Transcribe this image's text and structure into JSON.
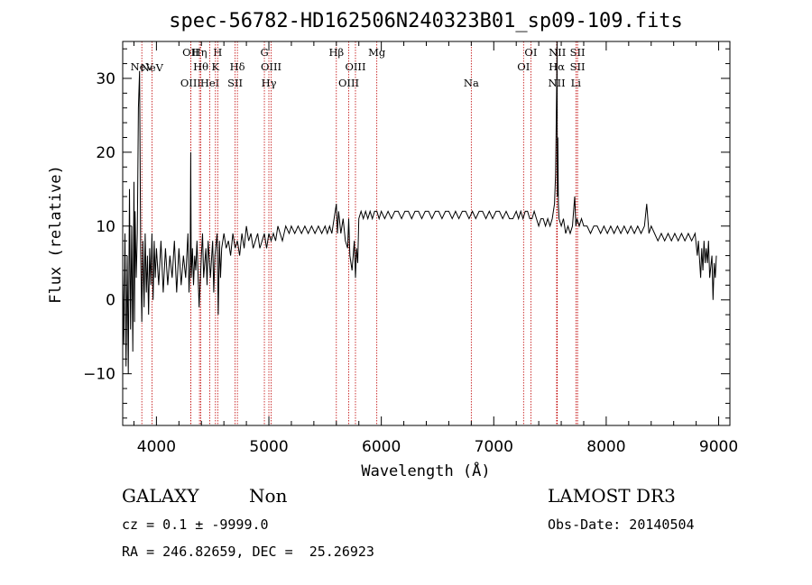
{
  "chart_data": {
    "type": "line",
    "title": "spec-56782-HD162506N240323B01_sp09-109.fits",
    "xlabel": "Wavelength (Å)",
    "ylabel": "Flux (relative)",
    "xlim": [
      3700,
      9100
    ],
    "ylim": [
      -17,
      35
    ],
    "xticks": [
      4000,
      5000,
      6000,
      7000,
      8000,
      9000
    ],
    "yticks": [
      -10,
      0,
      10,
      20,
      30
    ],
    "series": [
      {
        "name": "spectrum",
        "points": [
          [
            3700,
            4
          ],
          [
            3710,
            -6
          ],
          [
            3720,
            9
          ],
          [
            3730,
            -9
          ],
          [
            3740,
            6
          ],
          [
            3750,
            -10
          ],
          [
            3760,
            15
          ],
          [
            3770,
            -4
          ],
          [
            3780,
            10
          ],
          [
            3790,
            -7
          ],
          [
            3800,
            16
          ],
          [
            3805,
            -3
          ],
          [
            3810,
            12
          ],
          [
            3820,
            3
          ],
          [
            3830,
            9
          ],
          [
            3840,
            26
          ],
          [
            3850,
            31
          ],
          [
            3860,
            7
          ],
          [
            3870,
            -3
          ],
          [
            3880,
            8
          ],
          [
            3890,
            -1
          ],
          [
            3900,
            9
          ],
          [
            3910,
            1
          ],
          [
            3920,
            6
          ],
          [
            3930,
            -2
          ],
          [
            3940,
            7
          ],
          [
            3950,
            2
          ],
          [
            3960,
            9
          ],
          [
            3970,
            0
          ],
          [
            3980,
            8
          ],
          [
            3990,
            3
          ],
          [
            4000,
            7
          ],
          [
            4020,
            2
          ],
          [
            4040,
            8
          ],
          [
            4060,
            1
          ],
          [
            4080,
            7
          ],
          [
            4100,
            2
          ],
          [
            4120,
            6
          ],
          [
            4140,
            3
          ],
          [
            4160,
            8
          ],
          [
            4180,
            1
          ],
          [
            4200,
            7
          ],
          [
            4220,
            2
          ],
          [
            4240,
            6
          ],
          [
            4260,
            3
          ],
          [
            4280,
            9
          ],
          [
            4290,
            1
          ],
          [
            4300,
            5
          ],
          [
            4305,
            20
          ],
          [
            4310,
            3
          ],
          [
            4320,
            7
          ],
          [
            4330,
            2
          ],
          [
            4340,
            6
          ],
          [
            4350,
            4
          ],
          [
            4360,
            8
          ],
          [
            4380,
            -1
          ],
          [
            4400,
            6
          ],
          [
            4410,
            9
          ],
          [
            4420,
            3
          ],
          [
            4440,
            7
          ],
          [
            4450,
            2
          ],
          [
            4460,
            8
          ],
          [
            4480,
            3
          ],
          [
            4500,
            8
          ],
          [
            4510,
            1
          ],
          [
            4520,
            6
          ],
          [
            4540,
            9
          ],
          [
            4550,
            -2
          ],
          [
            4560,
            8
          ],
          [
            4570,
            3
          ],
          [
            4580,
            7
          ],
          [
            4600,
            9
          ],
          [
            4620,
            7
          ],
          [
            4640,
            8
          ],
          [
            4660,
            6
          ],
          [
            4680,
            9
          ],
          [
            4700,
            7
          ],
          [
            4720,
            8
          ],
          [
            4740,
            6
          ],
          [
            4760,
            9
          ],
          [
            4780,
            7
          ],
          [
            4800,
            10
          ],
          [
            4820,
            8
          ],
          [
            4840,
            9
          ],
          [
            4860,
            7
          ],
          [
            4880,
            8
          ],
          [
            4900,
            9
          ],
          [
            4920,
            7
          ],
          [
            4940,
            8
          ],
          [
            4960,
            9
          ],
          [
            4980,
            7
          ],
          [
            5000,
            9
          ],
          [
            5020,
            8
          ],
          [
            5040,
            9
          ],
          [
            5060,
            8
          ],
          [
            5080,
            10
          ],
          [
            5100,
            9
          ],
          [
            5120,
            8
          ],
          [
            5150,
            10
          ],
          [
            5180,
            9
          ],
          [
            5200,
            10
          ],
          [
            5230,
            9
          ],
          [
            5260,
            10
          ],
          [
            5290,
            9
          ],
          [
            5320,
            10
          ],
          [
            5350,
            9
          ],
          [
            5380,
            10
          ],
          [
            5410,
            9
          ],
          [
            5440,
            10
          ],
          [
            5470,
            9
          ],
          [
            5500,
            10
          ],
          [
            5520,
            9
          ],
          [
            5540,
            10
          ],
          [
            5560,
            9
          ],
          [
            5580,
            11
          ],
          [
            5600,
            13
          ],
          [
            5610,
            9
          ],
          [
            5620,
            12
          ],
          [
            5640,
            9
          ],
          [
            5660,
            11
          ],
          [
            5680,
            8
          ],
          [
            5700,
            7
          ],
          [
            5710,
            11
          ],
          [
            5720,
            6
          ],
          [
            5740,
            4
          ],
          [
            5760,
            8
          ],
          [
            5770,
            3
          ],
          [
            5780,
            7
          ],
          [
            5790,
            5
          ],
          [
            5800,
            11
          ],
          [
            5820,
            12
          ],
          [
            5840,
            11
          ],
          [
            5860,
            12
          ],
          [
            5880,
            11
          ],
          [
            5900,
            12
          ],
          [
            5920,
            11
          ],
          [
            5940,
            12
          ],
          [
            5960,
            12
          ],
          [
            5980,
            11
          ],
          [
            6000,
            12
          ],
          [
            6030,
            11
          ],
          [
            6060,
            12
          ],
          [
            6090,
            11
          ],
          [
            6120,
            12
          ],
          [
            6150,
            12
          ],
          [
            6180,
            11
          ],
          [
            6210,
            12
          ],
          [
            6240,
            12
          ],
          [
            6270,
            11
          ],
          [
            6300,
            12
          ],
          [
            6330,
            12
          ],
          [
            6360,
            11
          ],
          [
            6390,
            12
          ],
          [
            6420,
            12
          ],
          [
            6450,
            11
          ],
          [
            6480,
            12
          ],
          [
            6510,
            12
          ],
          [
            6540,
            11
          ],
          [
            6570,
            12
          ],
          [
            6600,
            12
          ],
          [
            6630,
            11
          ],
          [
            6660,
            12
          ],
          [
            6690,
            11
          ],
          [
            6720,
            12
          ],
          [
            6750,
            12
          ],
          [
            6780,
            11
          ],
          [
            6810,
            12
          ],
          [
            6840,
            11
          ],
          [
            6870,
            12
          ],
          [
            6900,
            12
          ],
          [
            6930,
            11
          ],
          [
            6960,
            12
          ],
          [
            6990,
            11
          ],
          [
            7020,
            12
          ],
          [
            7050,
            12
          ],
          [
            7080,
            11
          ],
          [
            7110,
            12
          ],
          [
            7140,
            11
          ],
          [
            7170,
            11
          ],
          [
            7200,
            12
          ],
          [
            7220,
            11
          ],
          [
            7240,
            12
          ],
          [
            7260,
            11
          ],
          [
            7280,
            12
          ],
          [
            7300,
            12
          ],
          [
            7320,
            11
          ],
          [
            7340,
            11
          ],
          [
            7360,
            12
          ],
          [
            7380,
            11
          ],
          [
            7400,
            10
          ],
          [
            7420,
            11
          ],
          [
            7440,
            11
          ],
          [
            7460,
            10
          ],
          [
            7480,
            11
          ],
          [
            7500,
            10
          ],
          [
            7520,
            11
          ],
          [
            7540,
            13
          ],
          [
            7550,
            17
          ],
          [
            7560,
            30
          ],
          [
            7563,
            35
          ],
          [
            7566,
            14
          ],
          [
            7570,
            22
          ],
          [
            7575,
            13
          ],
          [
            7580,
            11
          ],
          [
            7600,
            10
          ],
          [
            7620,
            11
          ],
          [
            7640,
            9
          ],
          [
            7660,
            10
          ],
          [
            7680,
            9
          ],
          [
            7700,
            10
          ],
          [
            7720,
            14
          ],
          [
            7730,
            10
          ],
          [
            7740,
            11
          ],
          [
            7760,
            10
          ],
          [
            7780,
            11
          ],
          [
            7800,
            10
          ],
          [
            7830,
            10
          ],
          [
            7860,
            9
          ],
          [
            7890,
            10
          ],
          [
            7920,
            10
          ],
          [
            7950,
            9
          ],
          [
            7980,
            10
          ],
          [
            8010,
            9
          ],
          [
            8040,
            10
          ],
          [
            8070,
            9
          ],
          [
            8100,
            10
          ],
          [
            8130,
            9
          ],
          [
            8160,
            10
          ],
          [
            8190,
            9
          ],
          [
            8220,
            10
          ],
          [
            8250,
            9
          ],
          [
            8280,
            10
          ],
          [
            8310,
            9
          ],
          [
            8340,
            10
          ],
          [
            8360,
            13
          ],
          [
            8380,
            9
          ],
          [
            8400,
            10
          ],
          [
            8430,
            9
          ],
          [
            8460,
            8
          ],
          [
            8490,
            9
          ],
          [
            8520,
            8
          ],
          [
            8550,
            9
          ],
          [
            8580,
            8
          ],
          [
            8610,
            9
          ],
          [
            8640,
            8
          ],
          [
            8670,
            9
          ],
          [
            8700,
            8
          ],
          [
            8730,
            9
          ],
          [
            8760,
            8
          ],
          [
            8790,
            9
          ],
          [
            8810,
            6
          ],
          [
            8820,
            8
          ],
          [
            8840,
            3
          ],
          [
            8850,
            7
          ],
          [
            8860,
            4
          ],
          [
            8870,
            8
          ],
          [
            8880,
            5
          ],
          [
            8890,
            7
          ],
          [
            8900,
            5
          ],
          [
            8910,
            8
          ],
          [
            8920,
            3
          ],
          [
            8940,
            6
          ],
          [
            8950,
            0
          ],
          [
            8960,
            5
          ],
          [
            8970,
            3
          ],
          [
            8980,
            6
          ]
        ]
      }
    ],
    "lines": [
      {
        "label": "NeV",
        "x": 3870,
        "row": 1
      },
      {
        "label": "NeV",
        "x": 3960,
        "row": 0
      },
      {
        "label": "OII",
        "x": 4305,
        "row": -1
      },
      {
        "label": "OIII",
        "x": 4305,
        "row": 2
      },
      {
        "label": "Hη",
        "x": 4383,
        "row": -1
      },
      {
        "label": "Hθ",
        "x": 4395,
        "row": 1
      },
      {
        "label": "HeI",
        "x": 4475,
        "row": 2
      },
      {
        "label": "H",
        "x": 4545,
        "row": -1
      },
      {
        "label": "K",
        "x": 4525,
        "row": 1
      },
      {
        "label": "Hδ",
        "x": 4720,
        "row": 1
      },
      {
        "label": "SII",
        "x": 4700,
        "row": 2
      },
      {
        "label": "G",
        "x": 4960,
        "row": -1
      },
      {
        "label": "OIII",
        "x": 5020,
        "row": 1
      },
      {
        "label": "Hγ",
        "x": 5000,
        "row": 2
      },
      {
        "label": "Hβ",
        "x": 5600,
        "row": -1
      },
      {
        "label": "OIII",
        "x": 5770,
        "row": 1
      },
      {
        "label": "OIII",
        "x": 5710,
        "row": 2
      },
      {
        "label": "Mg",
        "x": 5960,
        "row": -1
      },
      {
        "label": "Na",
        "x": 6800,
        "row": 2
      },
      {
        "label": "OI",
        "x": 7330,
        "row": -1
      },
      {
        "label": "OI",
        "x": 7265,
        "row": 1
      },
      {
        "label": "NII",
        "x": 7565,
        "row": -1
      },
      {
        "label": "Hα",
        "x": 7560,
        "row": 1
      },
      {
        "label": "NII",
        "x": 7560,
        "row": 2
      },
      {
        "label": "SII",
        "x": 7745,
        "row": -1
      },
      {
        "label": "SII",
        "x": 7745,
        "row": 1
      },
      {
        "label": "Li",
        "x": 7730,
        "row": 2
      }
    ]
  },
  "info": {
    "class_label": "GALAXY",
    "subclass_label": "Non",
    "redshift": "cz = 0.1 ± -9999.0",
    "coords": "RA = 246.82659, DEC =  25.26923",
    "survey": "LAMOST DR3",
    "obs_date": "Obs-Date: 20140504"
  },
  "colors": {
    "line_marker": "#c00000",
    "spectrum": "#000000",
    "axes": "#000000"
  }
}
